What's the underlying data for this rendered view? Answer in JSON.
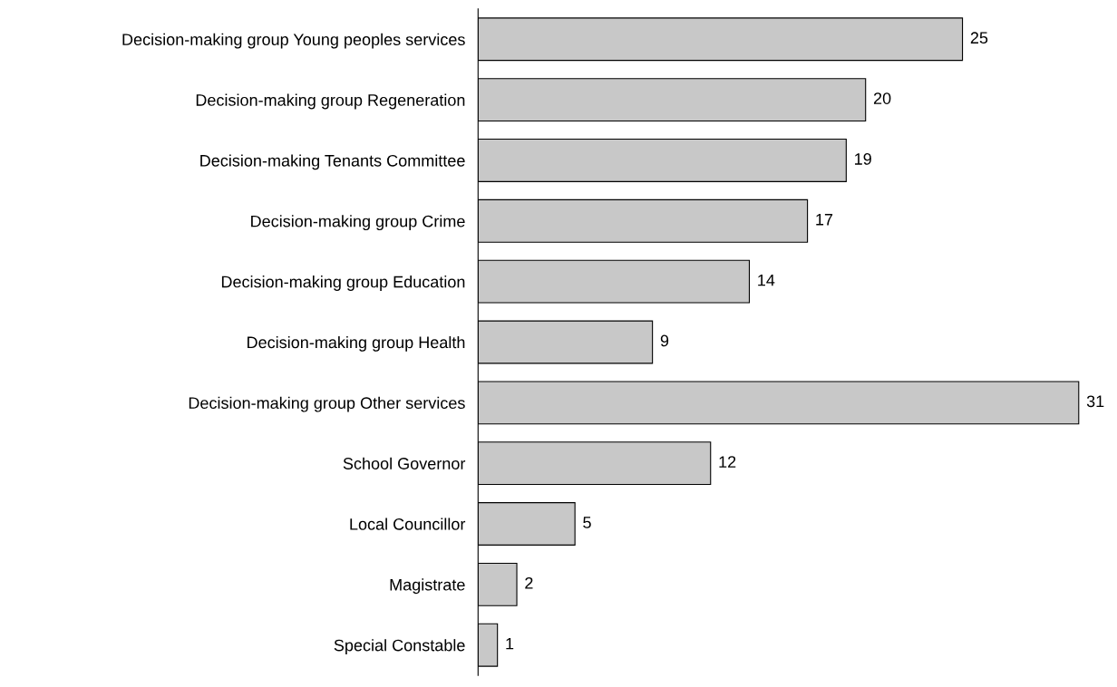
{
  "chart_data": {
    "type": "bar",
    "orientation": "horizontal",
    "categories": [
      "Decision-making group Young peoples services",
      "Decision-making group Regeneration",
      "Decision-making Tenants Committee",
      "Decision-making group Crime",
      "Decision-making group Education",
      "Decision-making group Health",
      "Decision-making group Other services",
      "School Governor",
      "Local Councillor",
      "Magistrate",
      "Special Constable"
    ],
    "values": [
      25,
      20,
      19,
      17,
      14,
      9,
      31,
      12,
      5,
      2,
      1
    ],
    "color": "#c8c8c8",
    "data_labels": true,
    "grid": false,
    "legend": false,
    "tick_labels": "y"
  }
}
